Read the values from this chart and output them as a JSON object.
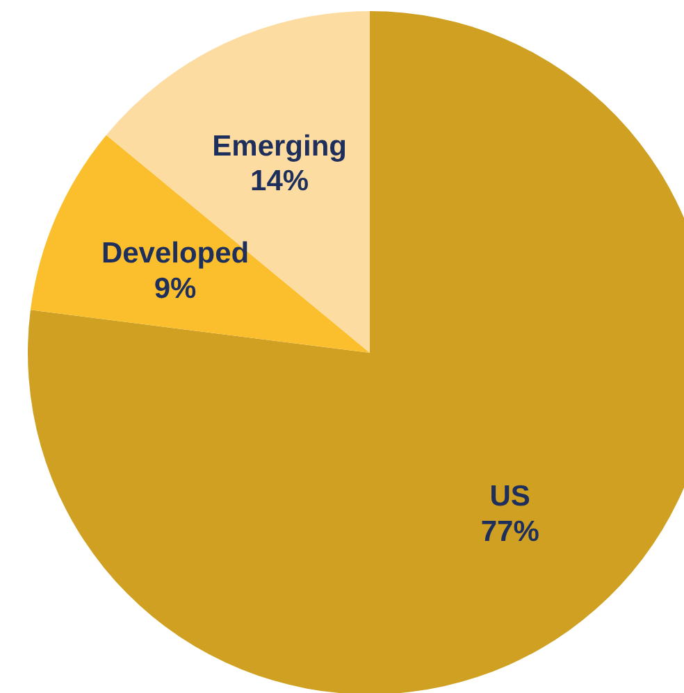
{
  "chart_data": {
    "type": "pie",
    "categories": [
      "US",
      "Developed",
      "Emerging"
    ],
    "values": [
      77,
      9,
      14
    ],
    "colors": [
      "#cfa022",
      "#fbbf2d",
      "#fddca2"
    ],
    "value_labels": [
      "77%",
      "9%",
      "14%"
    ],
    "legend": false
  }
}
